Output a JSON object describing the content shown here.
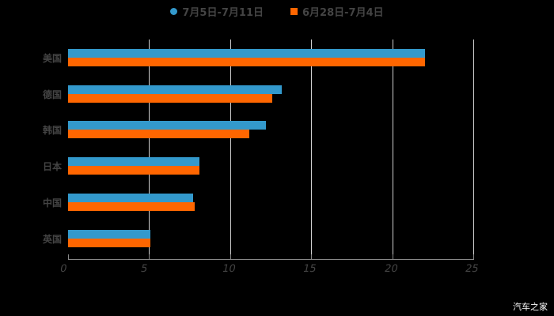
{
  "legend": [
    {
      "label": "7月5日-7月11日",
      "color": "#3399CC",
      "shape": "circle"
    },
    {
      "label": "6月28日-7月4日",
      "color": "#FF6600",
      "shape": "square"
    }
  ],
  "watermark": "汽车之家",
  "chart_data": {
    "type": "bar",
    "orientation": "horizontal",
    "title": "",
    "xlabel": "",
    "ylabel": "",
    "categories": [
      "美国",
      "德国",
      "韩国",
      "日本",
      "中国",
      "英国"
    ],
    "series": [
      {
        "name": "7月5日-7月11日",
        "color": "#3399CC",
        "values": [
          22.0,
          13.2,
          12.2,
          8.1,
          7.7,
          5.1
        ]
      },
      {
        "name": "6月28日-7月4日",
        "color": "#FF6600",
        "values": [
          22.0,
          12.6,
          11.2,
          8.1,
          7.8,
          5.1
        ]
      }
    ],
    "xlim": [
      0,
      25
    ],
    "xticks": [
      "0",
      "5",
      "10",
      "15",
      "20",
      "25"
    ],
    "grid": true,
    "legend_position": "top"
  }
}
